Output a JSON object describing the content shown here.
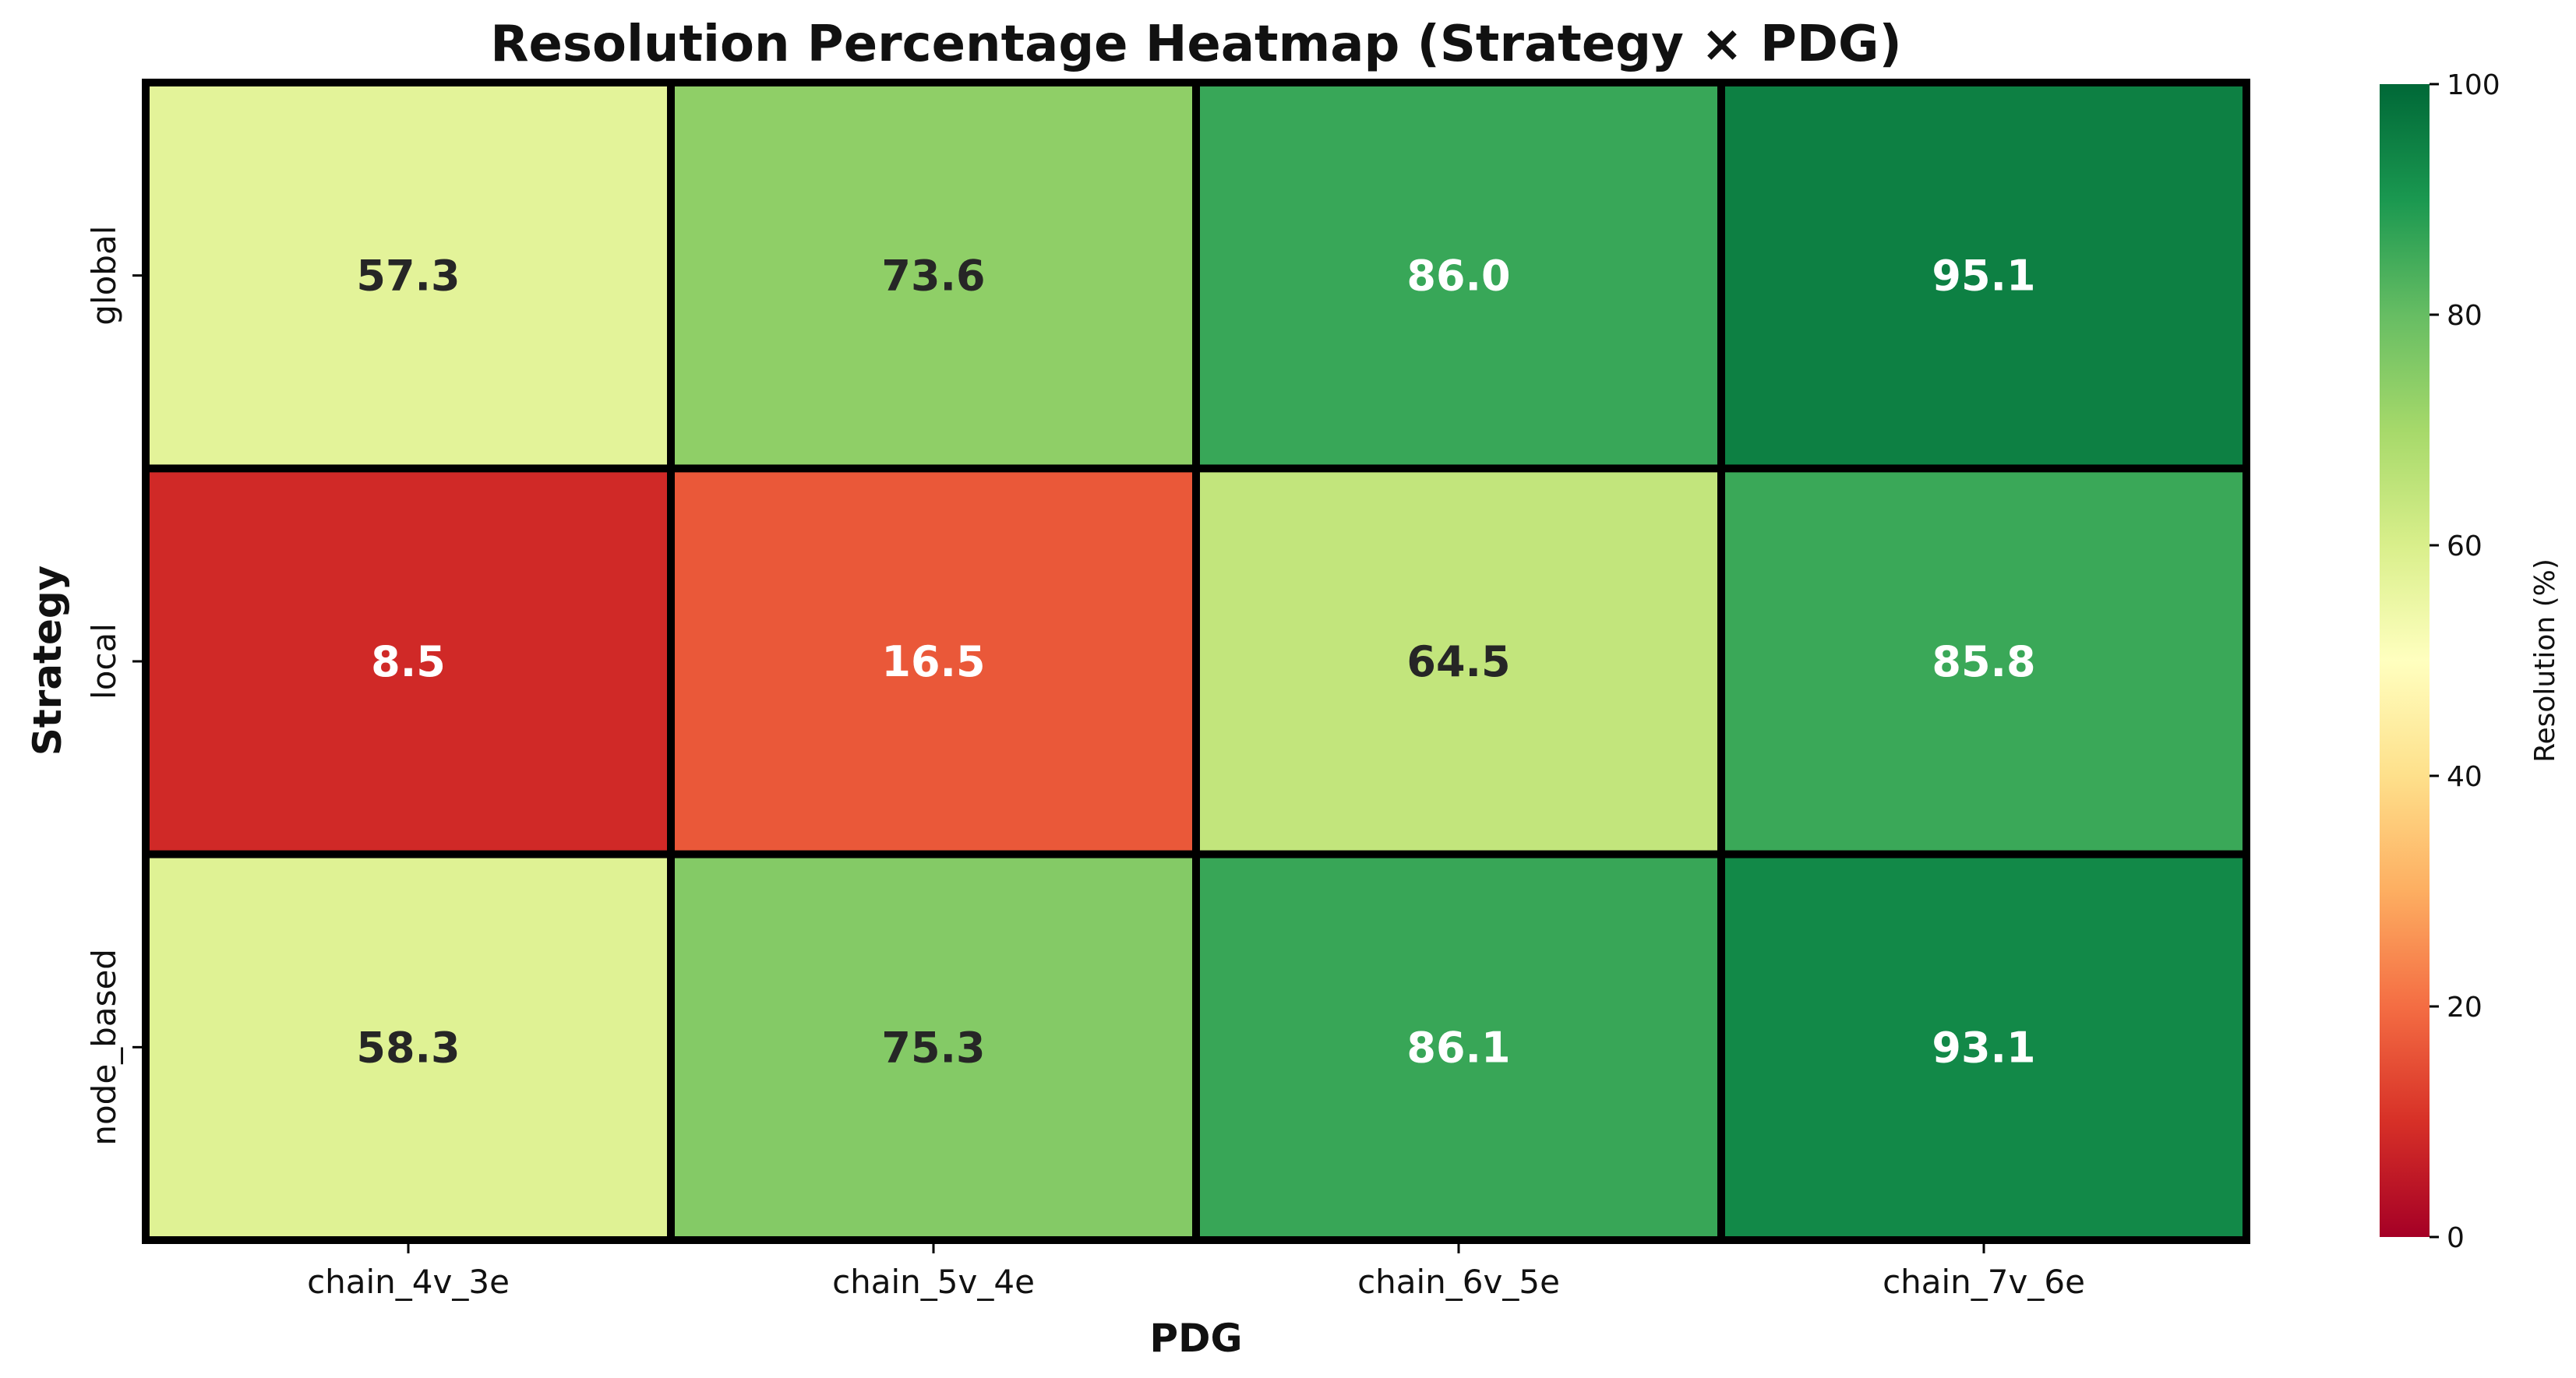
{
  "chart_data": {
    "type": "heatmap",
    "title": "Resolution Percentage Heatmap (Strategy × PDG)",
    "xlabel": "PDG",
    "ylabel": "Strategy",
    "x_categories": [
      "chain_4v_3e",
      "chain_5v_4e",
      "chain_6v_5e",
      "chain_7v_6e"
    ],
    "y_categories": [
      "global",
      "local",
      "node_based"
    ],
    "values": [
      [
        57.3,
        73.6,
        86.0,
        95.1
      ],
      [
        8.5,
        16.5,
        64.5,
        85.8
      ],
      [
        58.3,
        75.3,
        86.1,
        93.1
      ]
    ],
    "value_labels": [
      [
        "57.3",
        "73.6",
        "86.0",
        "95.1"
      ],
      [
        "8.5",
        "16.5",
        "64.5",
        "85.8"
      ],
      [
        "58.3",
        "75.3",
        "86.1",
        "93.1"
      ]
    ],
    "colormap": "RdYlGn",
    "colorbar": {
      "label": "Resolution (%)",
      "range": [
        0,
        100
      ],
      "ticks": [
        0,
        20,
        40,
        60,
        80,
        100
      ],
      "tick_labels": [
        "0",
        "20",
        "40",
        "60",
        "80",
        "100"
      ]
    }
  }
}
